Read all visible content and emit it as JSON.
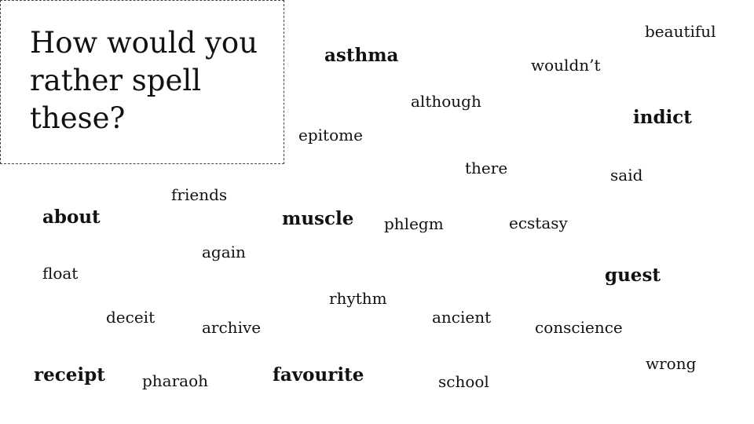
{
  "title": "How would you rather spell these?",
  "words": {
    "beautiful": "beautiful",
    "asthma": "asthma",
    "wouldnt": "wouldn’t",
    "although": "although",
    "indict": "indict",
    "epitome": "epitome",
    "there": "there",
    "said": "said",
    "friends": "friends",
    "about": "about",
    "muscle": "muscle",
    "phlegm": "phlegm",
    "ecstasy": "ecstasy",
    "again": "again",
    "float": "float",
    "guest": "guest",
    "rhythm": "rhythm",
    "deceit": "deceit",
    "archive": "archive",
    "ancient": "ancient",
    "conscience": "conscience",
    "wrong": "wrong",
    "receipt": "receipt",
    "pharaoh": "pharaoh",
    "favourite": "favourite",
    "school": "school"
  }
}
